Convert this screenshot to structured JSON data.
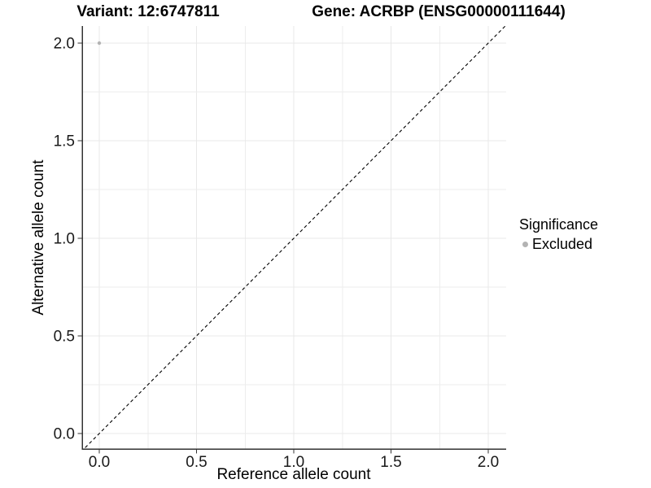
{
  "chart_data": {
    "type": "scatter",
    "title_left": "Variant: 12:6747811",
    "title_right": "Gene: ACRBP (ENSG00000111644)",
    "xlabel": "Reference allele count",
    "ylabel": "Alternative allele count",
    "xlim": [
      -0.09,
      2.09
    ],
    "ylim": [
      -0.09,
      2.09
    ],
    "x_ticks": {
      "values": [
        0,
        0.5,
        1,
        1.5,
        2
      ],
      "labels": [
        "0.0",
        "0.5",
        "1.0",
        "1.5",
        "2.0"
      ]
    },
    "y_ticks": {
      "values": [
        0,
        0.5,
        1,
        1.5,
        2
      ],
      "labels": [
        "0.0",
        "0.5",
        "1.0",
        "1.5",
        "2.0"
      ]
    },
    "minor_grid_step": 0.25,
    "grid": "on",
    "points": [
      {
        "x": 0,
        "y": 2,
        "series": "Excluded"
      }
    ],
    "reference_line": {
      "type": "identity",
      "slope": 1,
      "intercept": 0,
      "linetype": "dashed",
      "color": "#000000"
    },
    "legend": {
      "title": "Significance",
      "position": "right",
      "entries": [
        {
          "label": "Excluded",
          "color": "#b3b3b3",
          "marker": "circle"
        }
      ]
    },
    "colors": {
      "point": "#b3b3b3",
      "grid_major": "#e8e8e8",
      "grid_minor": "#ededed",
      "axis_line": "#333333",
      "tick_label": "#1a1a1a",
      "title": "#000000"
    }
  }
}
